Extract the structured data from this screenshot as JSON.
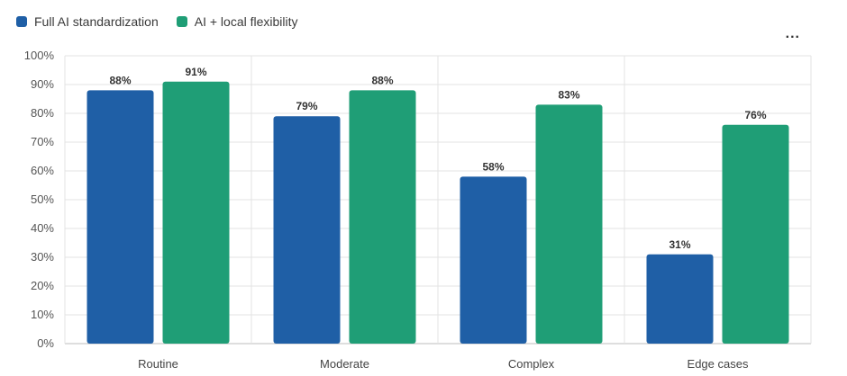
{
  "more_menu": {
    "icon": "more-horizontal-icon",
    "label": "..."
  },
  "colors": {
    "series1": "#1f5fa6",
    "series2": "#1f9e76",
    "grid": "#e3e3e3",
    "axis": "#bdbdbd"
  },
  "chart_data": {
    "type": "bar",
    "title": "",
    "xlabel": "",
    "ylabel": "",
    "categories": [
      "Routine",
      "Moderate",
      "Complex",
      "Edge cases"
    ],
    "series": [
      {
        "name": "Full AI standardization",
        "values": [
          88,
          79,
          58,
          31
        ]
      },
      {
        "name": "AI + local flexibility",
        "values": [
          91,
          88,
          83,
          76
        ]
      }
    ],
    "ylim": [
      0,
      100
    ],
    "yticks": [
      "0%",
      "10%",
      "20%",
      "30%",
      "40%",
      "50%",
      "60%",
      "70%",
      "80%",
      "90%",
      "100%"
    ],
    "value_suffix": "%",
    "grid": true,
    "legend_position": "top-left"
  }
}
